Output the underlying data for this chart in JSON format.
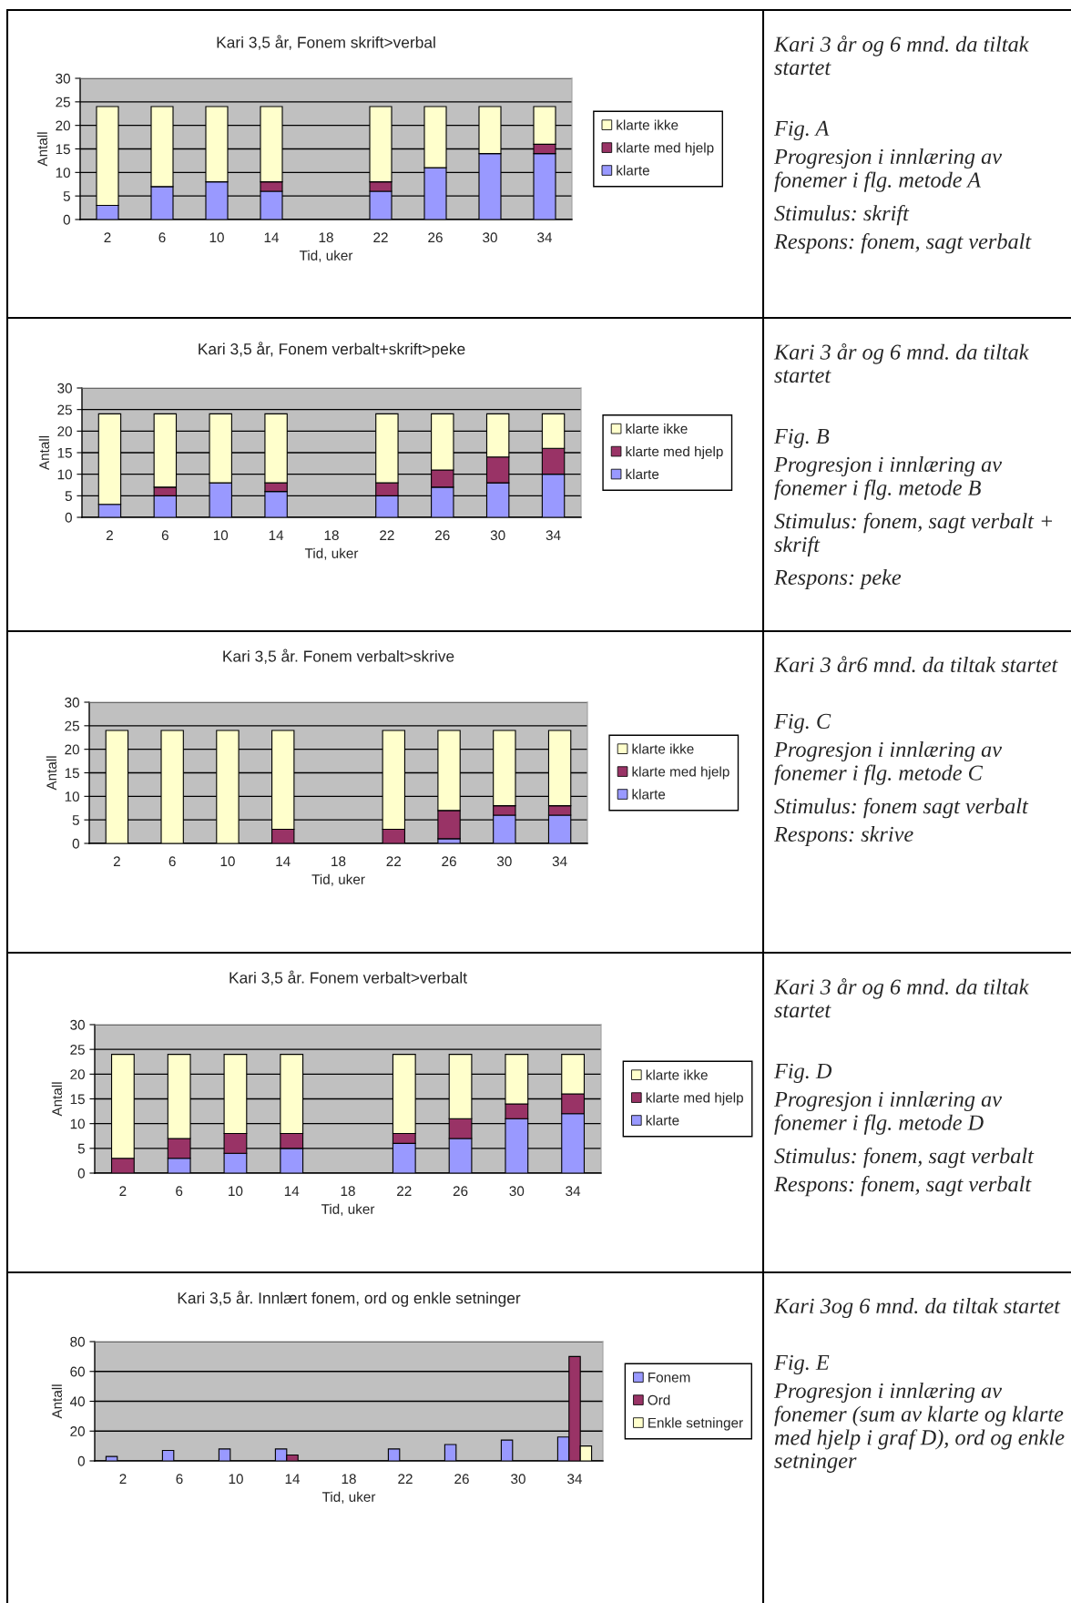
{
  "chart_data": [
    {
      "type": "bar",
      "title": "Kari 3,5 år, Fonem skrift>verbal",
      "xlabel": "Tid, uker",
      "ylabel": "Antall",
      "categories": [
        "2",
        "6",
        "10",
        "14",
        "18",
        "22",
        "26",
        "30",
        "34"
      ],
      "stacked": true,
      "ylim": [
        0,
        30
      ],
      "yticks": [
        0,
        5,
        10,
        15,
        20,
        25,
        30
      ],
      "grid": "y",
      "legend": "right",
      "series": [
        {
          "name": "klarte",
          "color": "#9999ff",
          "values": [
            3,
            7,
            8,
            6,
            null,
            6,
            11,
            14,
            14
          ]
        },
        {
          "name": "klarte med hjelp",
          "color": "#993366",
          "values": [
            0,
            0,
            0,
            2,
            null,
            2,
            0,
            0,
            2
          ]
        },
        {
          "name": "klarte ikke",
          "color": "#ffffcc",
          "values": [
            21,
            17,
            16,
            16,
            null,
            16,
            13,
            10,
            8
          ]
        }
      ]
    },
    {
      "type": "other",
      "annotations": [
        "Kari 3 år og 6 mnd. da tiltak startet",
        "Fig. A",
        "Progresjon i innlæring av fonemer i flg. metode A",
        "Stimulus: skrift",
        "Respons: fonem, sagt verbalt"
      ]
    },
    {
      "type": "bar",
      "title": "Kari 3,5 år, Fonem verbalt+skrift>peke",
      "xlabel": "Tid, uker",
      "ylabel": "Antall",
      "categories": [
        "2",
        "6",
        "10",
        "14",
        "18",
        "22",
        "26",
        "30",
        "34"
      ],
      "stacked": true,
      "ylim": [
        0,
        30
      ],
      "yticks": [
        0,
        5,
        10,
        15,
        20,
        25,
        30
      ],
      "grid": "y",
      "legend": "right",
      "series": [
        {
          "name": "klarte",
          "color": "#9999ff",
          "values": [
            3,
            5,
            8,
            6,
            null,
            5,
            7,
            8,
            10
          ]
        },
        {
          "name": "klarte med hjelp",
          "color": "#993366",
          "values": [
            0,
            2,
            0,
            2,
            null,
            3,
            4,
            6,
            6
          ]
        },
        {
          "name": "klarte ikke",
          "color": "#ffffcc",
          "values": [
            21,
            17,
            16,
            16,
            null,
            16,
            13,
            10,
            8
          ]
        }
      ]
    },
    {
      "type": "other",
      "annotations": [
        "Kari 3 år og 6 mnd. da tiltak startet",
        "Fig. B",
        "Progresjon i innlæring av fonemer i flg. metode B",
        "Stimulus: fonem, sagt verbalt + skrift",
        "Respons: peke"
      ]
    },
    {
      "type": "bar",
      "title": "Kari 3,5 år. Fonem verbalt>skrive",
      "xlabel": "Tid, uker",
      "ylabel": "Antall",
      "categories": [
        "2",
        "6",
        "10",
        "14",
        "18",
        "22",
        "26",
        "30",
        "34"
      ],
      "stacked": true,
      "ylim": [
        0,
        30
      ],
      "yticks": [
        0,
        5,
        10,
        15,
        20,
        25,
        30
      ],
      "grid": "y",
      "legend": "right",
      "series": [
        {
          "name": "klarte",
          "color": "#9999ff",
          "values": [
            0,
            0,
            0,
            0,
            null,
            0,
            1,
            6,
            6
          ]
        },
        {
          "name": "klarte med hjelp",
          "color": "#993366",
          "values": [
            0,
            0,
            0,
            3,
            null,
            3,
            6,
            2,
            2
          ]
        },
        {
          "name": "klarte ikke",
          "color": "#ffffcc",
          "values": [
            24,
            24,
            24,
            21,
            null,
            21,
            17,
            16,
            16
          ]
        }
      ]
    },
    {
      "type": "other",
      "annotations": [
        "Kari 3 år6 mnd. da tiltak startet",
        "Fig. C",
        "Progresjon i innlæring av fonemer i flg. metode C",
        "Stimulus: fonem sagt verbalt",
        "Respons: skrive"
      ]
    },
    {
      "type": "bar",
      "title": "Kari 3,5 år. Fonem verbalt>verbalt",
      "xlabel": "Tid, uker",
      "ylabel": "Antall",
      "categories": [
        "2",
        "6",
        "10",
        "14",
        "18",
        "22",
        "26",
        "30",
        "34"
      ],
      "stacked": true,
      "ylim": [
        0,
        30
      ],
      "yticks": [
        0,
        5,
        10,
        15,
        20,
        25,
        30
      ],
      "grid": "y",
      "legend": "right",
      "series": [
        {
          "name": "klarte",
          "color": "#9999ff",
          "values": [
            0,
            3,
            4,
            5,
            null,
            6,
            7,
            11,
            12
          ]
        },
        {
          "name": "klarte med hjelp",
          "color": "#993366",
          "values": [
            3,
            4,
            4,
            3,
            null,
            2,
            4,
            3,
            4
          ]
        },
        {
          "name": "klarte ikke",
          "color": "#ffffcc",
          "values": [
            21,
            17,
            16,
            16,
            null,
            16,
            13,
            10,
            8
          ]
        }
      ]
    },
    {
      "type": "other",
      "annotations": [
        "Kari 3 år og 6 mnd. da tiltak startet",
        "Fig. D",
        "Progresjon i innlæring av fonemer i flg. metode D",
        "Stimulus: fonem, sagt verbalt",
        "Respons: fonem, sagt verbalt"
      ]
    },
    {
      "type": "bar",
      "title": "Kari 3,5 år. Innlært fonem, ord og enkle setninger",
      "xlabel": "Tid, uker",
      "ylabel": "Antall",
      "categories": [
        "2",
        "6",
        "10",
        "14",
        "18",
        "22",
        "26",
        "30",
        "34"
      ],
      "ylim": [
        0,
        80
      ],
      "yticks": [
        0,
        20,
        40,
        60,
        80
      ],
      "grid": "y",
      "legend": "right",
      "series": [
        {
          "name": "Fonem",
          "color": "#9999ff",
          "values": [
            3,
            7,
            8,
            8,
            null,
            8,
            11,
            14,
            16
          ]
        },
        {
          "name": "Ord",
          "color": "#993366",
          "values": [
            null,
            null,
            null,
            4,
            null,
            null,
            null,
            null,
            70
          ]
        },
        {
          "name": "Enkle setninger",
          "color": "#ffffcc",
          "values": [
            null,
            null,
            null,
            null,
            null,
            null,
            null,
            null,
            10
          ]
        }
      ]
    },
    {
      "type": "other",
      "annotations": [
        "Kari 3og 6 mnd. da tiltak startet",
        "Fig. E",
        "Progresjon i innlæring av fonemer (sum av klarte og klarte med hjelp i graf D), ord og enkle setninger"
      ]
    }
  ]
}
